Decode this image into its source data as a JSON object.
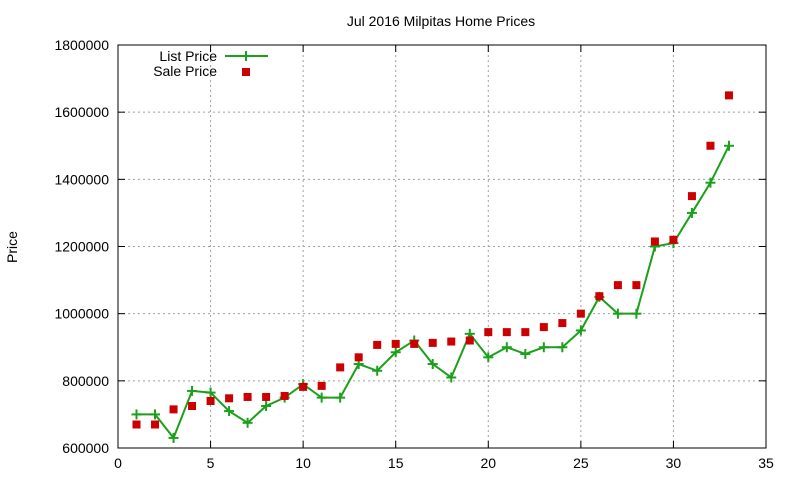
{
  "chart_data": {
    "type": "line",
    "title": "Jul 2016 Milpitas Home Prices",
    "xlabel": "",
    "ylabel": "Price",
    "xlim": [
      0,
      35
    ],
    "ylim": [
      600000,
      1800000
    ],
    "x_ticks": [
      0,
      5,
      10,
      15,
      20,
      25,
      30,
      35
    ],
    "y_ticks": [
      600000,
      800000,
      1000000,
      1200000,
      1400000,
      1600000,
      1800000
    ],
    "x_tick_labels": [
      "0",
      "5",
      "10",
      "15",
      "20",
      "25",
      "30",
      "35"
    ],
    "y_tick_labels": [
      "600000",
      "800000",
      "1000000",
      "1200000",
      "1400000",
      "1600000",
      "1800000"
    ],
    "grid": true,
    "legend_position": "top-left",
    "series": [
      {
        "name": "List Price",
        "style": "linespoints",
        "marker": "plus",
        "color": "#1aa01a",
        "x": [
          1,
          2,
          3,
          4,
          5,
          6,
          7,
          8,
          9,
          10,
          11,
          12,
          13,
          14,
          15,
          16,
          17,
          18,
          19,
          20,
          21,
          22,
          23,
          24,
          25,
          26,
          27,
          28,
          29,
          30,
          31,
          32,
          33
        ],
        "values": [
          700000,
          700000,
          630000,
          770000,
          765000,
          710000,
          675000,
          725000,
          750000,
          790000,
          750000,
          750000,
          850000,
          830000,
          885000,
          920000,
          850000,
          810000,
          940000,
          870000,
          900000,
          880000,
          900000,
          900000,
          950000,
          1050000,
          1000000,
          1000000,
          1200000,
          1210000,
          1300000,
          1390000,
          1500000
        ]
      },
      {
        "name": "Sale Price",
        "style": "points",
        "marker": "square",
        "color": "#cc0000",
        "x": [
          1,
          2,
          3,
          4,
          5,
          6,
          7,
          8,
          9,
          10,
          11,
          12,
          13,
          14,
          15,
          16,
          17,
          18,
          19,
          20,
          21,
          22,
          23,
          24,
          25,
          26,
          27,
          28,
          29,
          30,
          31,
          32,
          33
        ],
        "values": [
          670000,
          670000,
          715000,
          725000,
          740000,
          748000,
          752000,
          752000,
          755000,
          782000,
          785000,
          840000,
          870000,
          907000,
          910000,
          910000,
          913000,
          917000,
          920000,
          945000,
          945000,
          945000,
          960000,
          972000,
          1000000,
          1052000,
          1085000,
          1085000,
          1215000,
          1220000,
          1350000,
          1500000,
          1650000
        ]
      }
    ]
  }
}
